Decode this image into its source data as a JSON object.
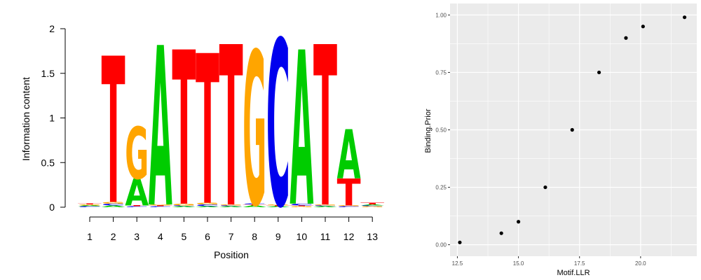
{
  "chart_data": [
    {
      "type": "sequence-logo",
      "ylabel": "Information content",
      "xlabel": "Position",
      "ylim": [
        0,
        2
      ],
      "y_ticks": [
        0,
        0.5,
        1,
        1.5,
        2
      ],
      "y_tick_labels": [
        "0",
        "0.5",
        "1",
        "1.5",
        "2"
      ],
      "positions": [
        1,
        2,
        3,
        4,
        5,
        6,
        7,
        8,
        9,
        10,
        11,
        12,
        13
      ],
      "position_labels": [
        "1",
        "2",
        "3",
        "4",
        "5",
        "6",
        "7",
        "8",
        "9",
        "10",
        "11",
        "12",
        "13"
      ],
      "colors": {
        "A": "#00cc00",
        "C": "#0000ee",
        "G": "#ffa500",
        "T": "#ff0000"
      },
      "stacks": [
        [
          {
            "letter": "C",
            "height": 0.01
          },
          {
            "letter": "A",
            "height": 0.01
          },
          {
            "letter": "G",
            "height": 0.01
          },
          {
            "letter": "T",
            "height": 0.01
          }
        ],
        [
          {
            "letter": "A",
            "height": 0.02
          },
          {
            "letter": "C",
            "height": 0.02
          },
          {
            "letter": "G",
            "height": 0.02
          },
          {
            "letter": "T",
            "height": 1.64
          }
        ],
        [
          {
            "letter": "C",
            "height": 0.01
          },
          {
            "letter": "T",
            "height": 0.01
          },
          {
            "letter": "A",
            "height": 0.3
          },
          {
            "letter": "G",
            "height": 0.58
          }
        ],
        [
          {
            "letter": "C",
            "height": 0.01
          },
          {
            "letter": "T",
            "height": 0.01
          },
          {
            "letter": "G",
            "height": 0.01
          },
          {
            "letter": "A",
            "height": 1.79
          }
        ],
        [
          {
            "letter": "A",
            "height": 0.01
          },
          {
            "letter": "C",
            "height": 0.01
          },
          {
            "letter": "G",
            "height": 0.02
          },
          {
            "letter": "T",
            "height": 1.73
          }
        ],
        [
          {
            "letter": "A",
            "height": 0.01
          },
          {
            "letter": "C",
            "height": 0.02
          },
          {
            "letter": "G",
            "height": 0.02
          },
          {
            "letter": "T",
            "height": 1.68
          }
        ],
        [
          {
            "letter": "A",
            "height": 0.01
          },
          {
            "letter": "C",
            "height": 0.01
          },
          {
            "letter": "G",
            "height": 0.01
          },
          {
            "letter": "T",
            "height": 1.8
          }
        ],
        [
          {
            "letter": "A",
            "height": 0.02
          },
          {
            "letter": "T",
            "height": 0.01
          },
          {
            "letter": "C",
            "height": 0.01
          },
          {
            "letter": "G",
            "height": 1.72
          }
        ],
        [
          {
            "letter": "A",
            "height": 0.01
          },
          {
            "letter": "T",
            "height": 0.01
          },
          {
            "letter": "G",
            "height": 0.01
          },
          {
            "letter": "C",
            "height": 1.86
          }
        ],
        [
          {
            "letter": "G",
            "height": 0.01
          },
          {
            "letter": "T",
            "height": 0.01
          },
          {
            "letter": "C",
            "height": 0.02
          },
          {
            "letter": "A",
            "height": 1.73
          }
        ],
        [
          {
            "letter": "A",
            "height": 0.01
          },
          {
            "letter": "C",
            "height": 0.01
          },
          {
            "letter": "G",
            "height": 0.01
          },
          {
            "letter": "T",
            "height": 1.8
          }
        ],
        [
          {
            "letter": "C",
            "height": 0.01
          },
          {
            "letter": "G",
            "height": 0.01
          },
          {
            "letter": "T",
            "height": 0.3
          },
          {
            "letter": "A",
            "height": 0.55
          }
        ],
        [
          {
            "letter": "G",
            "height": 0.01
          },
          {
            "letter": "C",
            "height": 0.01
          },
          {
            "letter": "A",
            "height": 0.01
          },
          {
            "letter": "T",
            "height": 0.02
          }
        ]
      ]
    },
    {
      "type": "scatter",
      "xlabel": "Motif.LLR",
      "ylabel": "Binding.Prior",
      "xlim": [
        12.2,
        22.3
      ],
      "ylim": [
        -0.05,
        1.05
      ],
      "x_ticks": [
        12.5,
        15.0,
        17.5,
        20.0
      ],
      "x_tick_labels": [
        "12.5",
        "15.0",
        "17.5",
        "20.0"
      ],
      "y_ticks": [
        0.0,
        0.25,
        0.5,
        0.75,
        1.0
      ],
      "y_tick_labels": [
        "0.00",
        "0.25",
        "0.50",
        "0.75",
        "1.00"
      ],
      "grid": true,
      "panel_background": "#ebebeb",
      "grid_color": "#ffffff",
      "point_color": "#000000",
      "points": [
        {
          "x": 12.6,
          "y": 0.01
        },
        {
          "x": 14.3,
          "y": 0.05
        },
        {
          "x": 15.0,
          "y": 0.1
        },
        {
          "x": 16.1,
          "y": 0.25
        },
        {
          "x": 17.2,
          "y": 0.5
        },
        {
          "x": 18.3,
          "y": 0.75
        },
        {
          "x": 19.4,
          "y": 0.9
        },
        {
          "x": 20.1,
          "y": 0.95
        },
        {
          "x": 21.8,
          "y": 0.99
        }
      ]
    }
  ]
}
